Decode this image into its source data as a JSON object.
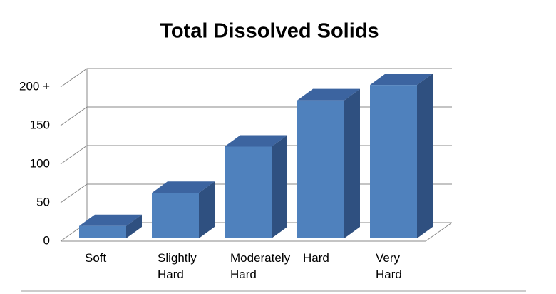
{
  "chart_data": {
    "type": "bar3d",
    "title": "Total Dissolved Solids",
    "categories": [
      "Soft",
      "Slightly Hard",
      "Moderately Hard",
      "Hard",
      "Very Hard"
    ],
    "values": [
      16,
      59,
      119,
      179,
      199
    ],
    "color": "#4f81bd",
    "ylim": [
      0,
      200
    ],
    "yticks": [
      0,
      50,
      100,
      150,
      {
        "value": 200,
        "label": "200 +"
      }
    ],
    "grid": true
  }
}
